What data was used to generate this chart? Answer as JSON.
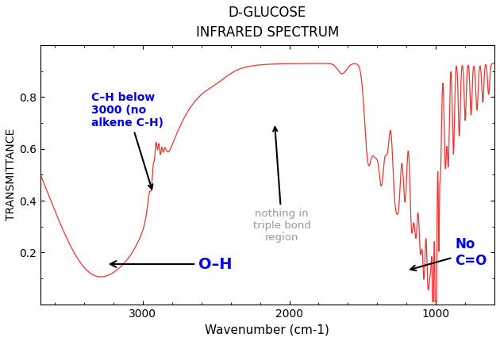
{
  "title_line1": "D-GLUCOSE",
  "title_line2": "INFRARED SPECTRUM",
  "xlabel": "Wavenumber (cm-1)",
  "ylabel": "TRANSMITTANCE",
  "xlim": [
    3700,
    600
  ],
  "ylim": [
    0.0,
    1.0
  ],
  "xticks": [
    3000,
    2000,
    1000
  ],
  "yticks": [
    0.2,
    0.4,
    0.6,
    0.8
  ],
  "line_color": "#EE3333",
  "background": "#ffffff",
  "annotation_color_blue": "#0000EE",
  "annotation_color_gray": "#999999",
  "annotation_color_black": "#000000"
}
